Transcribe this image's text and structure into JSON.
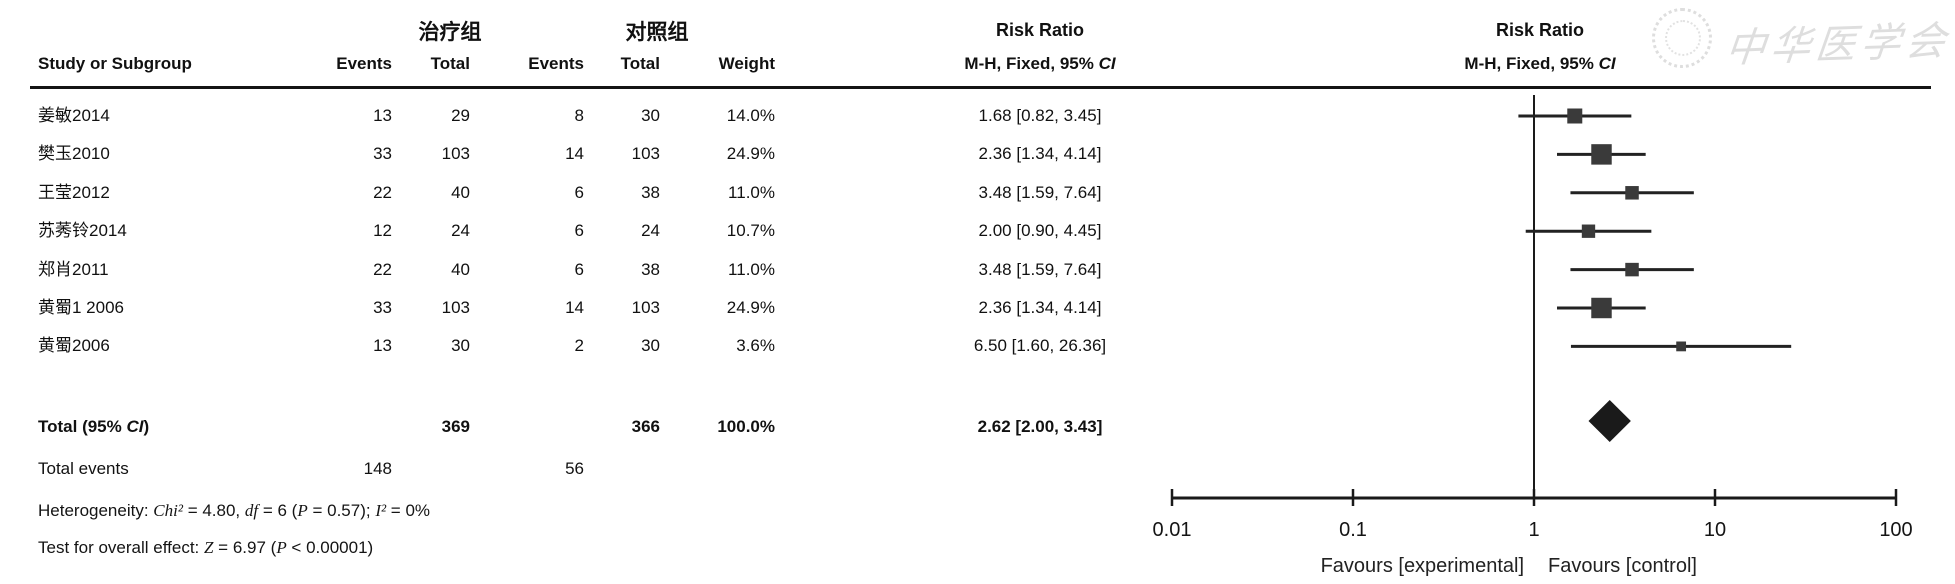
{
  "figure": {
    "watermark": {
      "text": "中华医学会"
    },
    "columns": {
      "group1": "治疗组",
      "group2": "对照组",
      "study": "Study or Subgroup",
      "events": "Events",
      "total": "Total",
      "weight": "Weight",
      "effect_title": "Risk Ratio",
      "effect_method_segments": [
        [
          "M-H, Fixed, 95% ",
          0
        ],
        [
          "CI",
          1
        ]
      ]
    },
    "totals": {
      "label_segments": [
        [
          "Total (95% ",
          0
        ],
        [
          "CI",
          1
        ],
        [
          ")",
          0
        ]
      ],
      "total1": "369",
      "total2": "366",
      "weight": "100.0%",
      "estimate_label": "2.62 [2.00, 3.43]",
      "events_label": "Total events",
      "events1": "148",
      "events2": "56"
    },
    "heterogeneity_segments": [
      [
        "Heterogeneity: ",
        0
      ],
      [
        "Chi²",
        1
      ],
      [
        " = 4.80, ",
        0
      ],
      [
        "df",
        1
      ],
      [
        " = 6 (",
        0
      ],
      [
        "P",
        1
      ],
      [
        " = 0.57); ",
        0
      ],
      [
        "I²",
        1
      ],
      [
        " = 0%",
        0
      ]
    ],
    "overall_effect_segments": [
      [
        "Test for overall effect: ",
        0
      ],
      [
        "Z",
        1
      ],
      [
        " = 6.97 (",
        0
      ],
      [
        "P",
        1
      ],
      [
        " < 0.00001)",
        0
      ]
    ]
  },
  "chart_data": {
    "type": "scatter",
    "variant": "forest-plot, Mantel-Haenszel fixed-effects, risk ratio",
    "x_scale": "log10",
    "x_range": [
      0.01,
      100
    ],
    "x_ticks": [
      "0.01",
      "0.1",
      "1",
      "10",
      "100"
    ],
    "no_effect_line": 1,
    "favours_left": "Favours [experimental]",
    "favours_right": "Favours [control]",
    "studies": [
      {
        "name": "姜敏2014",
        "events1": "13",
        "total1": "29",
        "events2": "8",
        "total2": "30",
        "weight": "14.0%",
        "weight_pct": 14.0,
        "rr": 1.68,
        "ci_low": 0.82,
        "ci_high": 3.45,
        "estimate_label": "1.68 [0.82, 3.45]"
      },
      {
        "name": "樊玉2010",
        "events1": "33",
        "total1": "103",
        "events2": "14",
        "total2": "103",
        "weight": "24.9%",
        "weight_pct": 24.9,
        "rr": 2.36,
        "ci_low": 1.34,
        "ci_high": 4.14,
        "estimate_label": "2.36 [1.34, 4.14]"
      },
      {
        "name": "王莹2012",
        "events1": "22",
        "total1": "40",
        "events2": "6",
        "total2": "38",
        "weight": "11.0%",
        "weight_pct": 11.0,
        "rr": 3.48,
        "ci_low": 1.59,
        "ci_high": 7.64,
        "estimate_label": "3.48 [1.59, 7.64]"
      },
      {
        "name": "苏莠铃2014",
        "events1": "12",
        "total1": "24",
        "events2": "6",
        "total2": "24",
        "weight": "10.7%",
        "weight_pct": 10.7,
        "rr": 2.0,
        "ci_low": 0.9,
        "ci_high": 4.45,
        "estimate_label": "2.00 [0.90, 4.45]"
      },
      {
        "name": "郑肖2011",
        "events1": "22",
        "total1": "40",
        "events2": "6",
        "total2": "38",
        "weight": "11.0%",
        "weight_pct": 11.0,
        "rr": 3.48,
        "ci_low": 1.59,
        "ci_high": 7.64,
        "estimate_label": "3.48 [1.59, 7.64]"
      },
      {
        "name": "黄蜀1 2006",
        "events1": "33",
        "total1": "103",
        "events2": "14",
        "total2": "103",
        "weight": "24.9%",
        "weight_pct": 24.9,
        "rr": 2.36,
        "ci_low": 1.34,
        "ci_high": 4.14,
        "estimate_label": "2.36 [1.34, 4.14]"
      },
      {
        "name": "黄蜀2006",
        "events1": "13",
        "total1": "30",
        "events2": "2",
        "total2": "30",
        "weight": "3.6%",
        "weight_pct": 3.6,
        "rr": 6.5,
        "ci_low": 1.6,
        "ci_high": 26.36,
        "estimate_label": "6.50 [1.60, 26.36]"
      }
    ],
    "total": {
      "rr": 2.62,
      "ci_low": 2.0,
      "ci_high": 3.43
    }
  }
}
